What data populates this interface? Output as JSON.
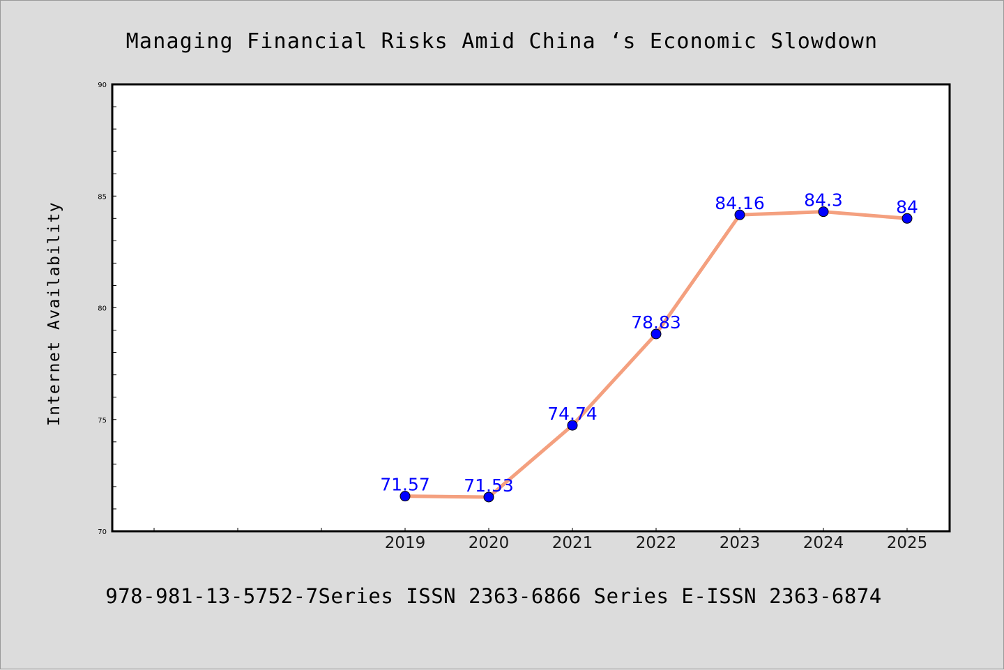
{
  "chart_data": {
    "type": "line",
    "title": "Managing Financial Risks Amid China ‘s Economic Slowdown",
    "xlabel": "",
    "ylabel": "Internet Availability",
    "x": [
      "",
      "",
      "",
      "2019",
      "2020",
      "2021",
      "2022",
      "2023",
      "2024",
      "2025"
    ],
    "series": [
      {
        "values": [
          null,
          null,
          null,
          71.57,
          71.53,
          74.74,
          78.83,
          84.16,
          84.3,
          84
        ],
        "labels": [
          "",
          "",
          "",
          "71.57",
          "71.53",
          "74.74",
          "78.83",
          "84.16",
          "84.3",
          "84"
        ]
      }
    ],
    "ylim": [
      70,
      90
    ],
    "yticks": [
      "70",
      "75",
      "80",
      "85",
      "90"
    ],
    "grid": false,
    "legend": "none",
    "colors": {
      "line": "#f4a07f",
      "marker": "#0000ff",
      "data_label": "#0000ff",
      "background": "#dcdcdc",
      "plot_background": "#ffffff"
    }
  },
  "footer": {
    "text": "978-981-13-5752-7Series ISSN 2363-6866 Series E-ISSN 2363-6874"
  }
}
